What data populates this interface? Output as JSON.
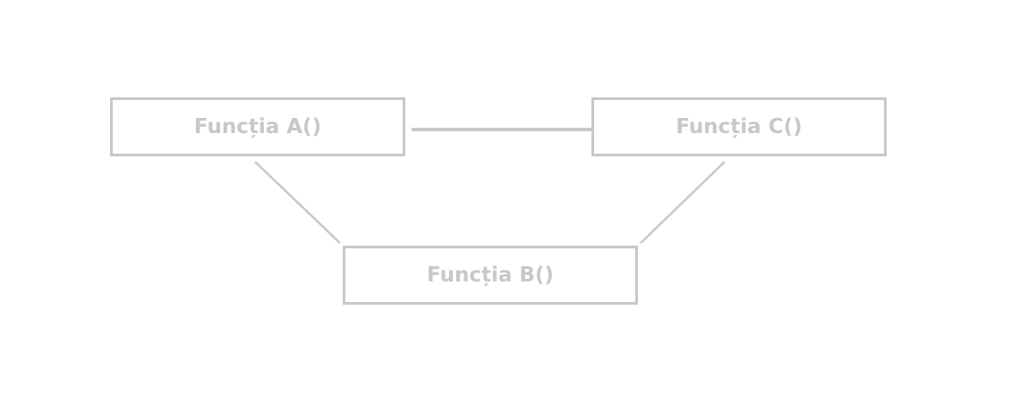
{
  "colors": {
    "stroke": "#c8c8c8",
    "text": "#c8c8c8",
    "background": "#ffffff"
  },
  "nodes": {
    "a": {
      "label": "Funcția A()"
    },
    "b": {
      "label": "Funcția B()"
    },
    "c": {
      "label": "Funcția C()"
    }
  },
  "edges": [
    {
      "from": "a",
      "to": "c"
    },
    {
      "from": "a",
      "to": "b"
    },
    {
      "from": "c",
      "to": "b"
    }
  ]
}
